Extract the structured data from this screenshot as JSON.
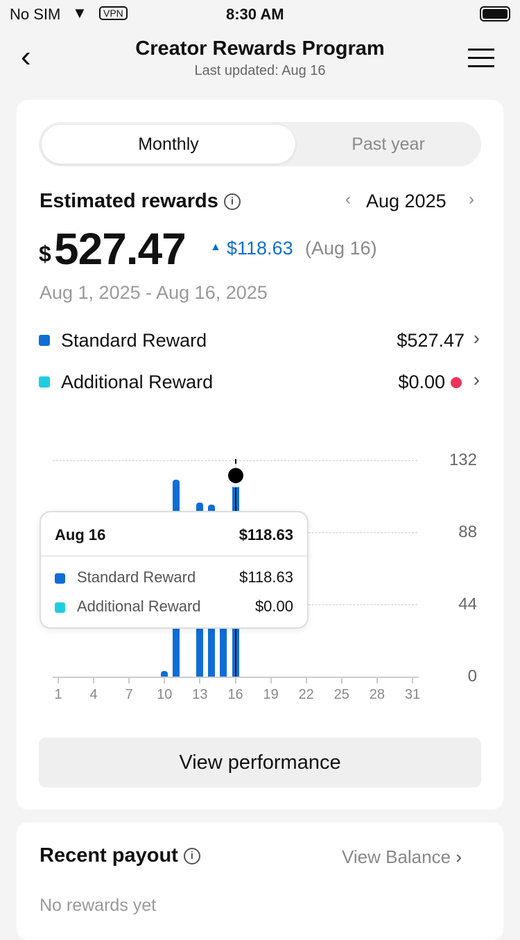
{
  "status": {
    "carrier": "No SIM",
    "vpn": "VPN",
    "time": "8:30 AM"
  },
  "header": {
    "title": "Creator Rewards Program",
    "subtitle": "Last updated: Aug 16"
  },
  "tabs": [
    {
      "label": "Monthly",
      "active": true
    },
    {
      "label": "Past year",
      "active": false
    }
  ],
  "rewards": {
    "title": "Estimated rewards",
    "period": "Aug 2025",
    "currency": "$",
    "amount": "527.47",
    "change": "$118.63",
    "change_date": "(Aug 16)",
    "range": "Aug 1, 2025 - Aug 16, 2025",
    "items": [
      {
        "label": "Standard Reward",
        "value": "$527.47",
        "color": "#0f6ed6"
      },
      {
        "label": "Additional Reward",
        "value": "$0.00",
        "color": "#1fcde0",
        "alert_color": "#f0325a"
      }
    ]
  },
  "chart_data": {
    "type": "bar",
    "x": [
      1,
      2,
      3,
      4,
      5,
      6,
      7,
      8,
      9,
      10,
      11,
      12,
      13,
      14,
      15,
      16,
      17,
      18,
      19,
      20,
      21,
      22,
      23,
      24,
      25,
      26,
      27,
      28,
      29,
      30,
      31
    ],
    "series": [
      {
        "name": "Standard Reward",
        "values": [
          0,
          0,
          0,
          0,
          0,
          0,
          0,
          0,
          0,
          3.2,
          120,
          0,
          106,
          105,
          74.64,
          118.63,
          0,
          0,
          0,
          0,
          0,
          0,
          0,
          0,
          0,
          0,
          0,
          0,
          0,
          0,
          0
        ]
      },
      {
        "name": "Additional Reward",
        "values": [
          0,
          0,
          0,
          0,
          0,
          0,
          0,
          0,
          0,
          0,
          0,
          0,
          0,
          0,
          0,
          0,
          0,
          0,
          0,
          0,
          0,
          0,
          0,
          0,
          0,
          0,
          0,
          0,
          0,
          0,
          0
        ]
      }
    ],
    "x_ticks": [
      "1",
      "4",
      "7",
      "10",
      "13",
      "16",
      "19",
      "22",
      "25",
      "28",
      "31"
    ],
    "y_ticks": [
      "0",
      "44",
      "88",
      "132"
    ],
    "ylim": [
      0,
      132
    ],
    "grid": true,
    "y_axis": "right",
    "selected_day": 16,
    "tooltip": {
      "date": "Aug 16",
      "total": "$118.63",
      "rows": [
        {
          "label": "Standard Reward",
          "value": "$118.63"
        },
        {
          "label": "Additional Reward",
          "value": "$0.00"
        }
      ]
    }
  },
  "actions": {
    "view_performance": "View performance"
  },
  "payout": {
    "title": "Recent payout",
    "link": "View Balance",
    "empty": "No rewards yet"
  }
}
